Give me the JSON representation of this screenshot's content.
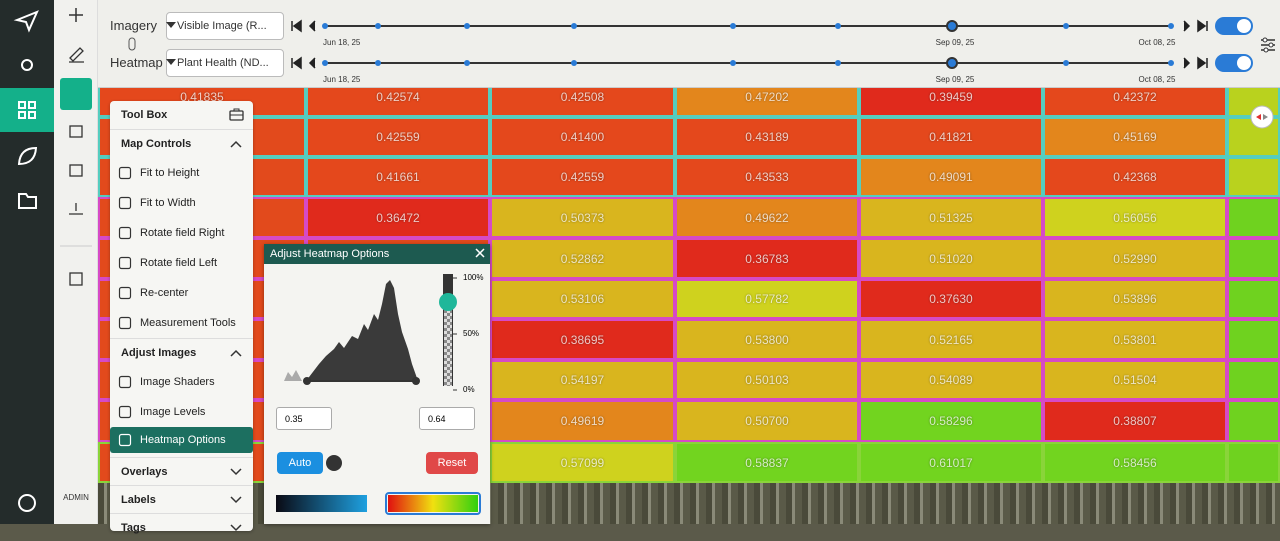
{
  "sidebar": {
    "admin_label": "ADMIN"
  },
  "top_bar": {
    "imagery": {
      "label": "Imagery",
      "dropdown": "Visible Image (R...",
      "dates": [
        "Jun 18, 25",
        "Sep 09, 25",
        "Oct 08, 25"
      ]
    },
    "heatmap": {
      "label": "Heatmap",
      "dropdown": "Plant Health (ND...",
      "dates": [
        "Jun 18, 25",
        "Sep 09, 25",
        "Oct 08, 25"
      ]
    }
  },
  "toolbox": {
    "title": "Tool Box",
    "sections": [
      {
        "title": "Map Controls",
        "items": [
          "Fit to Height",
          "Fit to Width",
          "Rotate field Right",
          "Rotate field Left",
          "Re-center",
          "Measurement Tools"
        ]
      },
      {
        "title": "Adjust Images",
        "items": [
          "Image Shaders",
          "Image Levels",
          "Heatmap Options"
        ]
      },
      {
        "title": "Overlays"
      },
      {
        "title": "Labels"
      },
      {
        "title": "Tags"
      }
    ]
  },
  "heatmap_options": {
    "title": "Adjust Heatmap Options",
    "percent_labels": [
      "100%",
      "50%",
      "0%"
    ],
    "min": "0.35",
    "max": "0.64",
    "auto": "Auto",
    "reset": "Reset"
  },
  "map": {
    "rows": [
      [
        "0.41835",
        "0.42574",
        "0.42508",
        "0.47202",
        "0.39459",
        "0.42372"
      ],
      [
        null,
        "0.42559",
        "0.41400",
        "0.43189",
        "0.41821",
        "0.45169"
      ],
      [
        null,
        "0.41661",
        "0.42559",
        "0.43533",
        "0.49091",
        "0.42368"
      ],
      [
        null,
        "0.36472",
        "0.50373",
        "0.49622",
        "0.51325",
        "0.56056"
      ],
      [
        null,
        null,
        "0.52862",
        "0.36783",
        "0.51020",
        "0.52990"
      ],
      [
        null,
        null,
        "0.53106",
        "0.57782",
        "0.37630",
        "0.53896"
      ],
      [
        null,
        null,
        "0.38695",
        "0.53800",
        "0.52165",
        "0.53801"
      ],
      [
        null,
        null,
        "0.54197",
        "0.50103",
        "0.54089",
        "0.51504"
      ],
      [
        null,
        null,
        "0.49619",
        "0.50700",
        "0.58296",
        "0.38807"
      ],
      [
        null,
        null,
        "0.57099",
        "0.58837",
        "0.61017",
        "0.58456"
      ]
    ]
  }
}
